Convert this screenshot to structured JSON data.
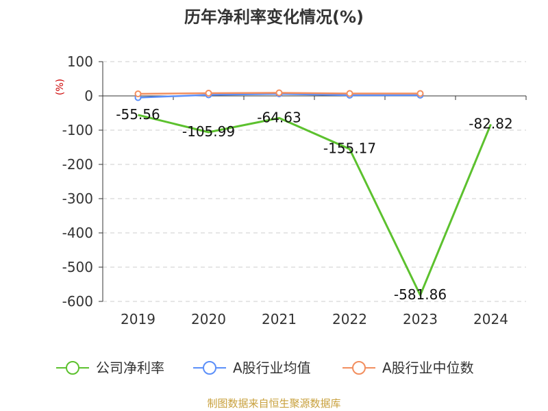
{
  "chart_data": {
    "type": "line",
    "title": "历年净利率变化情况(%)",
    "unit_label": "(%)",
    "categories": [
      "2019",
      "2020",
      "2021",
      "2022",
      "2023",
      "2024"
    ],
    "ylim": [
      -600,
      100
    ],
    "yticks": [
      100,
      0,
      -100,
      -200,
      -300,
      -400,
      -500,
      -600
    ],
    "grid": true,
    "legend_position": "bottom",
    "series": [
      {
        "name": "公司净利率",
        "color": "#5cc12e",
        "values": [
          -55.56,
          -105.99,
          -64.63,
          -155.17,
          -581.86,
          -82.82
        ],
        "labels": [
          "-55.56",
          "-105.99",
          "-64.63",
          "-155.17",
          "-581.86",
          "-82.82"
        ],
        "show_markers": false
      },
      {
        "name": "A股行业均值",
        "color": "#5b8ff9",
        "values": [
          -5,
          3,
          6,
          2,
          2,
          null
        ],
        "show_markers": true
      },
      {
        "name": "A股行业中位数",
        "color": "#f28e5e",
        "values": [
          6,
          8,
          9,
          7,
          7,
          null
        ],
        "show_markers": true
      }
    ]
  },
  "source_text": "制图数据来自恒生聚源数据库"
}
